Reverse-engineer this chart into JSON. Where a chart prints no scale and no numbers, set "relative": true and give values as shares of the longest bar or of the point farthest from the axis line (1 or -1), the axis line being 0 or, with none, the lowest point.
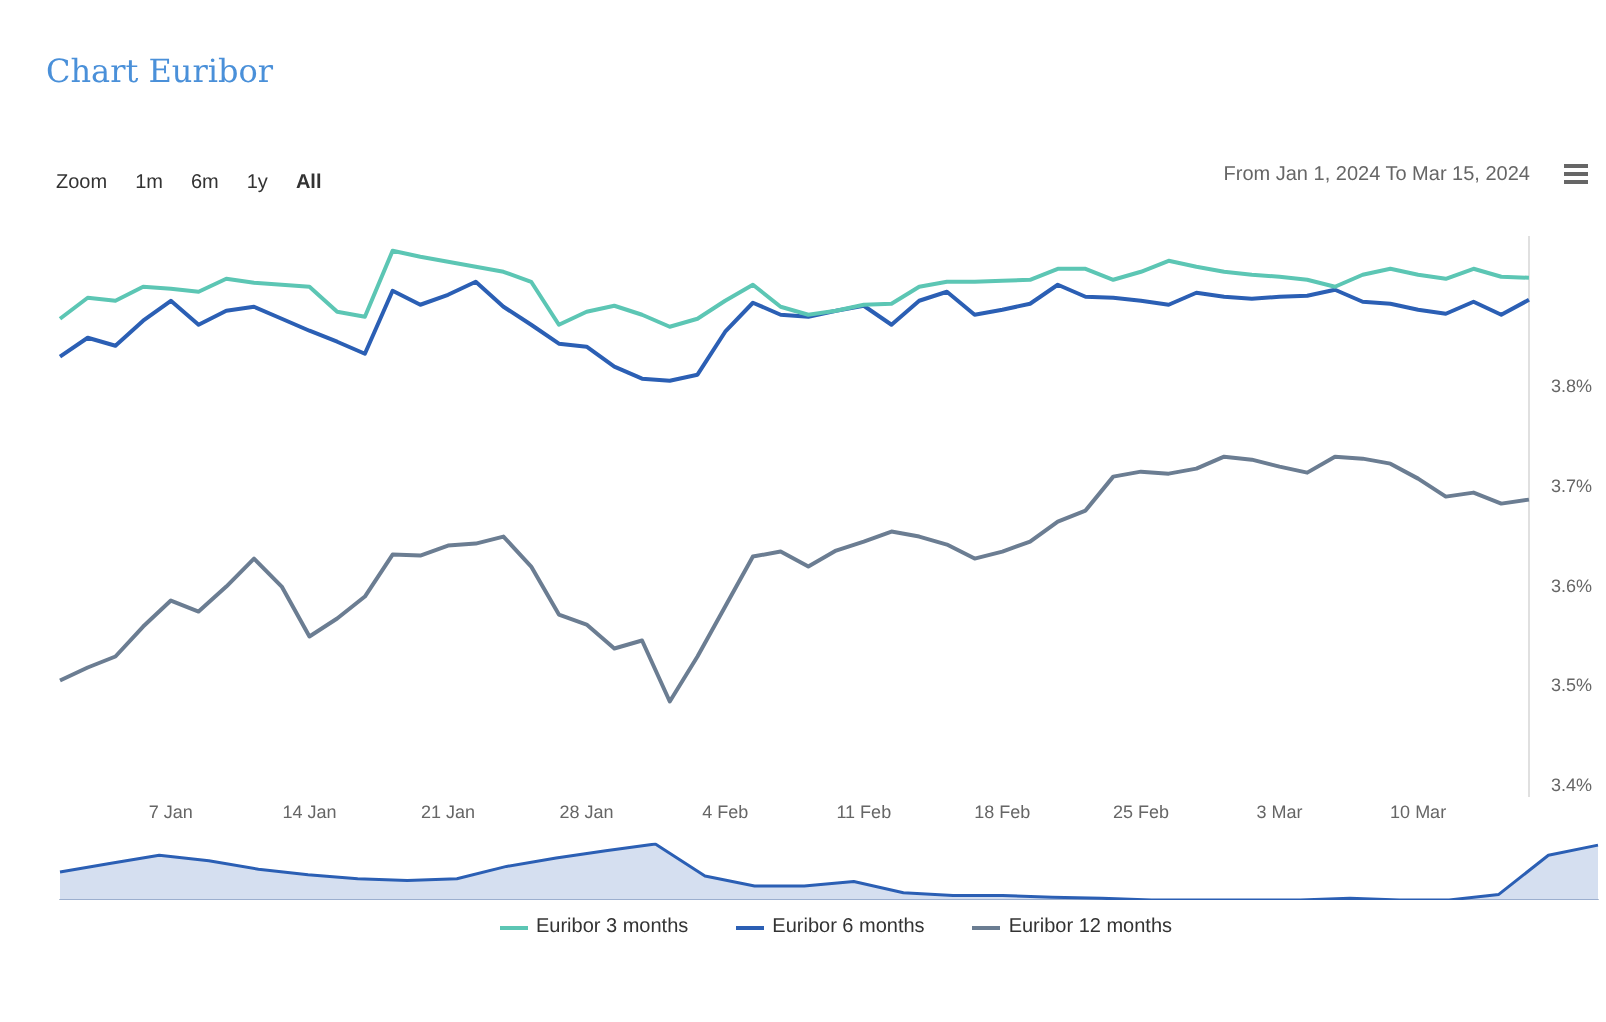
{
  "chart_data": [
    {
      "type": "line",
      "title": "Chart Euribor",
      "annotations": [
        "Zoom",
        "1m",
        "6m",
        "1y",
        "All",
        "From Jan 1, 2024 To Mar 15, 2024"
      ],
      "categories": [
        null,
        null,
        null,
        null,
        "7 Jan",
        null,
        null,
        null,
        null,
        "14 Jan",
        null,
        null,
        null,
        null,
        "21 Jan",
        null,
        null,
        null,
        null,
        "28 Jan",
        null,
        null,
        null,
        null,
        "4 Feb",
        null,
        null,
        null,
        null,
        "11 Feb",
        null,
        null,
        null,
        null,
        "18 Feb",
        null,
        null,
        null,
        null,
        "25 Feb",
        null,
        null,
        null,
        null,
        "3 Mar",
        null,
        null,
        null,
        null,
        "10 Mar",
        null,
        null,
        null,
        null
      ],
      "series": [
        {
          "name": "Euribor 3 months",
          "color": "#5cc6b4",
          "values": [
            3.868,
            3.889,
            3.886,
            3.9,
            3.898,
            3.895,
            3.908,
            3.904,
            3.902,
            3.9,
            3.875,
            3.87,
            3.936,
            3.93,
            3.925,
            3.92,
            3.915,
            3.905,
            3.862,
            3.875,
            3.881,
            3.872,
            3.86,
            3.868,
            3.886,
            3.902,
            3.88,
            3.872,
            3.876,
            3.882,
            3.883,
            3.9,
            3.905,
            3.905,
            3.906,
            3.907,
            3.918,
            3.918,
            3.907,
            3.915,
            3.926,
            3.92,
            3.915,
            3.912,
            3.91,
            3.907,
            3.9,
            3.912,
            3.918,
            3.912,
            3.908,
            3.918,
            3.91,
            3.909
          ]
        },
        {
          "name": "Euribor 6 months",
          "color": "#2b5fb4",
          "values": [
            3.83,
            3.849,
            3.841,
            3.866,
            3.886,
            3.862,
            3.876,
            3.88,
            3.868,
            3.856,
            3.845,
            3.833,
            3.896,
            3.882,
            3.892,
            3.905,
            3.88,
            3.862,
            3.843,
            3.84,
            3.82,
            3.808,
            3.806,
            3.812,
            3.855,
            3.884,
            3.872,
            3.87,
            3.876,
            3.881,
            3.862,
            3.886,
            3.895,
            3.872,
            3.877,
            3.883,
            3.902,
            3.89,
            3.889,
            3.886,
            3.882,
            3.894,
            3.89,
            3.888,
            3.89,
            3.891,
            3.897,
            3.885,
            3.883,
            3.877,
            3.873,
            3.885,
            3.872,
            3.887
          ]
        },
        {
          "name": "Euribor 12 months",
          "color": "#6b7d92",
          "values": [
            3.506,
            3.519,
            3.53,
            3.56,
            3.586,
            3.575,
            3.6,
            3.628,
            3.6,
            3.55,
            3.568,
            3.59,
            3.632,
            3.631,
            3.641,
            3.643,
            3.65,
            3.62,
            3.572,
            3.562,
            3.538,
            3.546,
            3.485,
            3.53,
            3.58,
            3.63,
            3.635,
            3.62,
            3.636,
            3.645,
            3.655,
            3.65,
            3.642,
            3.628,
            3.635,
            3.645,
            3.665,
            3.676,
            3.71,
            3.715,
            3.713,
            3.718,
            3.73,
            3.727,
            3.72,
            3.714,
            3.73,
            3.728,
            3.723,
            3.708,
            3.69,
            3.694,
            3.683,
            3.687
          ]
        }
      ],
      "ylim": [
        3.39,
        3.95
      ],
      "yticks": [
        {
          "value": 3.4,
          "label": "3.4%"
        },
        {
          "value": 3.5,
          "label": "3.5%"
        },
        {
          "value": 3.6,
          "label": "3.6%"
        },
        {
          "value": 3.7,
          "label": "3.7%"
        },
        {
          "value": 3.8,
          "label": "3.8%"
        }
      ],
      "grid": false,
      "legend": "bottom",
      "marker": "none",
      "line_style": "solid"
    },
    {
      "type": "area",
      "relative": true,
      "categories": [
        null,
        null,
        null,
        null,
        null,
        null,
        null,
        null,
        null,
        null,
        null,
        null,
        null,
        null,
        null,
        null,
        null,
        null,
        null,
        null,
        null,
        null,
        null,
        null,
        null,
        null,
        null,
        null,
        null,
        null,
        null,
        null
      ],
      "series": [
        {
          "color": "#2b5fb4",
          "values": [
            0.5,
            0.65,
            0.8,
            0.7,
            0.55,
            0.45,
            0.38,
            0.35,
            0.38,
            0.6,
            0.75,
            0.88,
            1.0,
            0.43,
            0.25,
            0.25,
            0.33,
            0.13,
            0.08,
            0.08,
            0.05,
            0.03,
            0,
            0,
            0,
            0,
            0.03,
            0,
            0,
            0.1,
            0.8,
            0.98
          ]
        }
      ],
      "grid": false,
      "marker": "none"
    }
  ]
}
